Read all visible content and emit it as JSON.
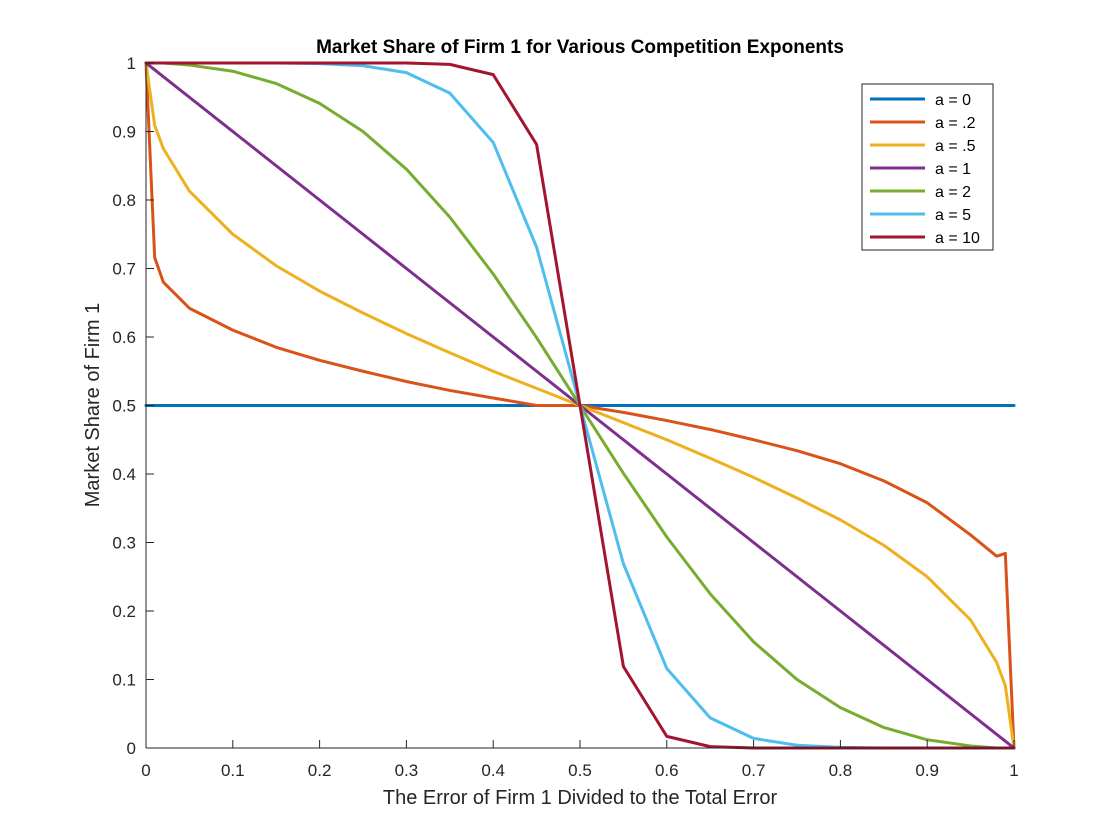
{
  "chart_data": {
    "type": "line",
    "title": "Market Share of Firm 1 for Various Competition Exponents",
    "xlabel": "The Error of Firm 1 Divided to the Total Error",
    "ylabel": "Market Share of Firm 1",
    "xlim": [
      0,
      1
    ],
    "ylim": [
      0,
      1
    ],
    "xticks": [
      0,
      0.1,
      0.2,
      0.3,
      0.4,
      0.5,
      0.6,
      0.7,
      0.8,
      0.9,
      1
    ],
    "xtick_labels": [
      "0",
      "0.1",
      "0.2",
      "0.3",
      "0.4",
      "0.5",
      "0.6",
      "0.7",
      "0.8",
      "0.9",
      "1"
    ],
    "yticks": [
      0,
      0.1,
      0.2,
      0.3,
      0.4,
      0.5,
      0.6,
      0.7,
      0.8,
      0.9,
      1
    ],
    "ytick_labels": [
      "0",
      "0.1",
      "0.2",
      "0.3",
      "0.4",
      "0.5",
      "0.6",
      "0.7",
      "0.8",
      "0.9",
      "1"
    ],
    "grid": false,
    "legend_position": "top-right",
    "x": [
      0,
      0.01,
      0.02,
      0.05,
      0.1,
      0.15,
      0.2,
      0.25,
      0.3,
      0.35,
      0.4,
      0.45,
      0.5,
      0.55,
      0.6,
      0.65,
      0.7,
      0.75,
      0.8,
      0.85,
      0.9,
      0.95,
      0.98,
      0.99,
      1
    ],
    "series": [
      {
        "name": "a = 0",
        "color": "#0072bd",
        "values": [
          0.5,
          0.5,
          0.5,
          0.5,
          0.5,
          0.5,
          0.5,
          0.5,
          0.5,
          0.5,
          0.5,
          0.5,
          0.5,
          0.5,
          0.5,
          0.5,
          0.5,
          0.5,
          0.5,
          0.5,
          0.5,
          0.5,
          0.5,
          0.5,
          0.5
        ]
      },
      {
        "name": "a = .2",
        "color": "#d95319",
        "values": [
          1,
          0.716,
          0.68,
          0.642,
          0.61,
          0.585,
          0.566,
          0.55,
          0.535,
          0.522,
          0.511,
          0.5,
          0.5,
          0.49,
          0.478,
          0.465,
          0.45,
          0.434,
          0.415,
          0.39,
          0.358,
          0.311,
          0.28,
          0.284,
          0
        ]
      },
      {
        "name": "a = .5",
        "color": "#edb120",
        "values": [
          1,
          0.909,
          0.875,
          0.813,
          0.75,
          0.704,
          0.667,
          0.635,
          0.605,
          0.577,
          0.55,
          0.525,
          0.5,
          0.475,
          0.45,
          0.423,
          0.395,
          0.365,
          0.333,
          0.296,
          0.25,
          0.187,
          0.125,
          0.091,
          0
        ]
      },
      {
        "name": "a = 1",
        "color": "#7e2f8e",
        "values": [
          1,
          0.99,
          0.98,
          0.95,
          0.9,
          0.85,
          0.8,
          0.75,
          0.7,
          0.65,
          0.6,
          0.55,
          0.5,
          0.45,
          0.4,
          0.35,
          0.3,
          0.25,
          0.2,
          0.15,
          0.1,
          0.05,
          0.02,
          0.01,
          0
        ]
      },
      {
        "name": "a = 2",
        "color": "#77ac30",
        "values": [
          1,
          1.0,
          1.0,
          0.997,
          0.988,
          0.97,
          0.941,
          0.9,
          0.845,
          0.775,
          0.692,
          0.599,
          0.5,
          0.401,
          0.308,
          0.225,
          0.155,
          0.1,
          0.059,
          0.03,
          0.012,
          0.003,
          0.0,
          0.0,
          0
        ]
      },
      {
        "name": "a = 5",
        "color": "#4dbeee",
        "values": [
          1,
          1.0,
          1.0,
          1.0,
          1.0,
          1.0,
          0.999,
          0.996,
          0.986,
          0.956,
          0.884,
          0.731,
          0.5,
          0.269,
          0.116,
          0.044,
          0.014,
          0.004,
          0.001,
          0.0,
          0.0,
          0.0,
          0.0,
          0.0,
          0
        ]
      },
      {
        "name": "a = 10",
        "color": "#a2142f",
        "values": [
          1,
          1.0,
          1.0,
          1.0,
          1.0,
          1.0,
          1.0,
          1.0,
          1.0,
          0.998,
          0.983,
          0.881,
          0.5,
          0.119,
          0.017,
          0.002,
          0.0,
          0.0,
          0.0,
          0.0,
          0.0,
          0.0,
          0.0,
          0.0,
          0
        ]
      }
    ]
  }
}
